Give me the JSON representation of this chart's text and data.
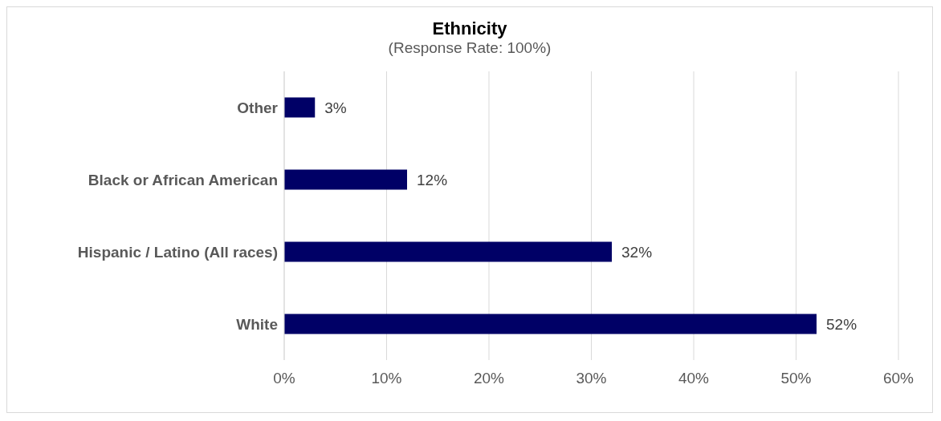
{
  "chart_data": {
    "type": "bar",
    "orientation": "horizontal",
    "title": "Ethnicity",
    "subtitle": "(Response Rate: 100%)",
    "categories": [
      "Other",
      "Black or African American",
      "Hispanic / Latino (All races)",
      "White"
    ],
    "values": [
      3,
      12,
      32,
      52
    ],
    "color": "#000066",
    "value_labels": [
      "3%",
      "12%",
      "32%",
      "52%"
    ],
    "xlim": [
      0,
      60
    ],
    "xticks": [
      {
        "value": 0,
        "label": "0%"
      },
      {
        "value": 10,
        "label": "10%"
      },
      {
        "value": 20,
        "label": "20%"
      },
      {
        "value": 30,
        "label": "30%"
      },
      {
        "value": 40,
        "label": "40%"
      },
      {
        "value": 50,
        "label": "50%"
      },
      {
        "value": 60,
        "label": "60%"
      }
    ],
    "grid": "x",
    "legend": false
  }
}
